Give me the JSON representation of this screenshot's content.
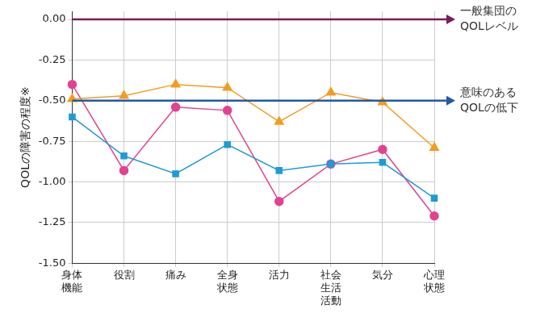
{
  "chart_data": {
    "type": "line",
    "categories": [
      [
        "身体",
        "機能"
      ],
      "役割",
      "痛み",
      [
        "全身",
        "状態"
      ],
      "活力",
      [
        "社会",
        "生活",
        "活動"
      ],
      "気分",
      [
        "心理",
        "状態"
      ]
    ],
    "series": [
      {
        "color": "#f39c1f",
        "marker": "triangle",
        "values": [
          -0.49,
          -0.47,
          -0.4,
          -0.42,
          -0.63,
          -0.45,
          -0.51,
          -0.79
        ]
      },
      {
        "color": "#1e9bd7",
        "marker": "square",
        "values": [
          -0.6,
          -0.84,
          -0.95,
          -0.77,
          -0.93,
          -0.89,
          -0.88,
          -1.1
        ]
      },
      {
        "color": "#e2438f",
        "marker": "circle",
        "values": [
          -0.4,
          -0.93,
          -0.54,
          -0.56,
          -1.12,
          -0.89,
          -0.8,
          -1.21
        ]
      }
    ],
    "ylabel": "QOLの障害の程度※",
    "ylim": [
      -1.5,
      0.05
    ],
    "yticks": [
      {
        "value": -1.5,
        "label": "-1.50"
      },
      {
        "value": -1.25,
        "label": "-1.25"
      },
      {
        "value": -1,
        "label": "-1.00"
      },
      {
        "value": -0.75,
        "label": "-0.75"
      },
      {
        "value": -0.5,
        "label": "-0.50"
      },
      {
        "value": -0.25,
        "label": "-0.25"
      },
      {
        "value": 0,
        "label": "0.00"
      }
    ],
    "grid": true,
    "annotations": [
      {
        "y": 0,
        "text": [
          "一般集団の",
          "QOLレベル"
        ],
        "color": "#7b1a5c"
      },
      {
        "y": -0.5,
        "text": [
          "意味のある",
          "QOLの低下"
        ],
        "color": "#1f5aa8"
      }
    ]
  }
}
